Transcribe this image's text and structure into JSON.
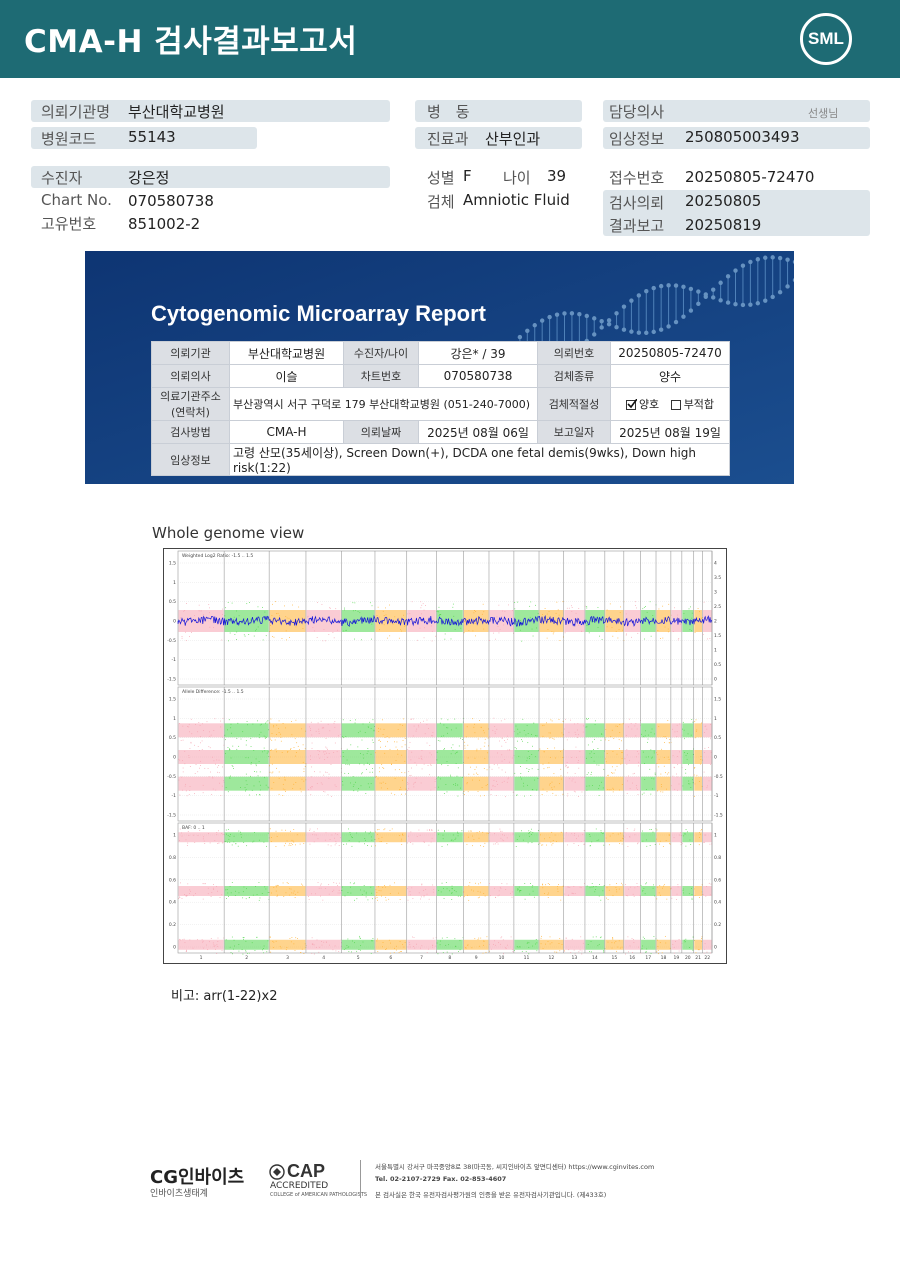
{
  "header": {
    "title": "CMA-H 검사결과보고서",
    "logo_text": "SML"
  },
  "patient_info": {
    "requesting_org_label": "의뢰기관명",
    "requesting_org_value": "부산대학교병원",
    "hospital_code_label": "병원코드",
    "hospital_code_value": "55143",
    "ward_label": "병　동",
    "dept_label": "진료과",
    "dept_value": "산부인과",
    "doctor_label": "담당의사",
    "doctor_suffix": "선생님",
    "clinical_label": "임상정보",
    "clinical_value": "250805003493",
    "patient_label": "수진자",
    "patient_value": "강은정",
    "chart_label": "Chart No.",
    "chart_value": "070580738",
    "unique_label": "고유번호",
    "unique_value": "851002-2",
    "sex_label": "성별",
    "sex_value": "F",
    "age_label": "나이",
    "age_value": "39",
    "specimen_label": "검체",
    "specimen_value": "Amniotic Fluid",
    "receipt_label": "접수번호",
    "receipt_value": "20250805-72470",
    "req_date_label": "검사의뢰",
    "req_date_value": "20250805",
    "result_label": "결과보고",
    "result_value": "20250819"
  },
  "report": {
    "title": "Cytogenomic Microarray Report",
    "r1": [
      "의뢰기관",
      "부산대학교병원",
      "수진자/나이",
      "강은* / 39",
      "의뢰번호",
      "20250805-72470"
    ],
    "r2": [
      "의뢰의사",
      "이슬",
      "차트번호",
      "070580738",
      "검체종류",
      "양수"
    ],
    "r3_label": "의료기관주소 (연락처)",
    "r3_value": "부산광역시 서구 구덕로 179 부산대학교병원 (051-240-7000)",
    "r3_label2": "검체적절성",
    "r3_good": "양호",
    "r3_bad": "부적합",
    "r4": [
      "검사방법",
      "CMA-H",
      "의뢰날짜",
      "2025년 08월 06일",
      "보고일자",
      "2025년 08월 19일"
    ],
    "r5_label": "임상정보",
    "r5_value": "고령 산모(35세이상), Screen Down(+), DCDA one fetal demis(9wks), Down high risk(1:22)"
  },
  "genome": {
    "title": "Whole genome view",
    "panel1_label": "Weighted Log2 Ratio: -1.5 .. 1.5",
    "panel2_label": "Allele Difference: -1.5 .. 1.5",
    "panel3_label": "BAF: 0 .. 1",
    "p1_left": [
      "1.5",
      "1",
      "0.5",
      "0",
      "-0.5",
      "-1",
      "-1.5"
    ],
    "p1_right": [
      "4",
      "3.5",
      "3",
      "2.5",
      "2",
      "1.5",
      "1",
      "0.5",
      "0"
    ],
    "p2_left": [
      "1.5",
      "1",
      "0.5",
      "0",
      "-0.5",
      "-1",
      "-1.5"
    ],
    "p2_right": [
      "1.5",
      "1",
      "0.5",
      "0",
      "-0.5",
      "-1",
      "-1.5"
    ],
    "p3_left": [
      "1",
      "0.8",
      "0.6",
      "0.4",
      "0.2",
      "0"
    ],
    "p3_right": [
      "1",
      "0.8",
      "0.6",
      "0.4",
      "0.2",
      "0"
    ],
    "chromosomes": [
      "1",
      "2",
      "3",
      "4",
      "5",
      "6",
      "7",
      "8",
      "9",
      "10",
      "11",
      "12",
      "13",
      "14",
      "15",
      "16",
      "17",
      "18",
      "19",
      "20",
      "21",
      "22"
    ]
  },
  "remark": "비고: arr(1-22)x2",
  "footer": {
    "cg_name": "CG인바이츠",
    "cg_sub": "인바이츠생태계",
    "cap": "CAP",
    "cap_sub": "ACCREDITED",
    "cap_sub2": "COLLEGE of AMERICAN PATHOLOGISTS",
    "addr1": "서울특별시 강서구 마곡중앙8로 38(마곡동, 씨지인바이츠 앞면디센터)  https://www.cginvites.com",
    "addr2": "Tel. 02-2107-2729   Fax. 02-853-4607",
    "addr3": "본 검사실은 한국 유전자검사평가원의 인증을 받은 유전자검사기관입니다. (제433호)"
  }
}
